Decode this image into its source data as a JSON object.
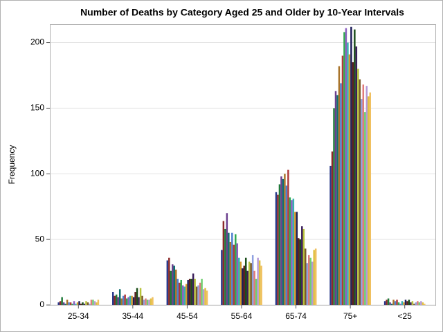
{
  "chart_data": {
    "type": "grouped_bar",
    "title": "Number of Deaths by Category Aged 25 and Older by 10-Year Intervals",
    "y_label": "Frequency",
    "categories": [
      "25-34",
      "35-44",
      "45-54",
      "55-64",
      "65-74",
      "75+",
      "<25"
    ],
    "ylim": [
      0,
      214
    ],
    "yticks": [
      0,
      50,
      100,
      150,
      200
    ],
    "grid": true,
    "series": [
      {
        "color": "#2a3a8c",
        "values": [
          2,
          10,
          34,
          42,
          86,
          106,
          3
        ]
      },
      {
        "color": "#8b2a2a",
        "values": [
          3,
          7,
          36,
          64,
          84,
          117,
          4
        ]
      },
      {
        "color": "#1f7a3a",
        "values": [
          6,
          8,
          26,
          58,
          92,
          150,
          5
        ]
      },
      {
        "color": "#6b3f8e",
        "values": [
          2,
          6,
          31,
          70,
          98,
          163,
          2
        ]
      },
      {
        "color": "#0f6e6e",
        "values": [
          1,
          12,
          30,
          55,
          96,
          160,
          1
        ]
      },
      {
        "color": "#a8742a",
        "values": [
          4,
          5,
          27,
          48,
          100,
          182,
          4
        ]
      },
      {
        "color": "#4f7fcf",
        "values": [
          2,
          7,
          20,
          55,
          91,
          169,
          3
        ]
      },
      {
        "color": "#b03a3a",
        "values": [
          2,
          8,
          17,
          46,
          103,
          190,
          4
        ]
      },
      {
        "color": "#2fa84f",
        "values": [
          1,
          5,
          19,
          54,
          82,
          208,
          2
        ]
      },
      {
        "color": "#8c5fc2",
        "values": [
          3,
          6,
          15,
          47,
          80,
          211,
          1
        ]
      },
      {
        "color": "#38b0b0",
        "values": [
          1,
          7,
          14,
          36,
          81,
          200,
          3
        ]
      },
      {
        "color": "#d49a2a",
        "values": [
          2,
          7,
          16,
          33,
          71,
          191,
          2
        ]
      },
      {
        "color": "#1e1e5a",
        "values": [
          3,
          6,
          19,
          28,
          71,
          212,
          4
        ]
      },
      {
        "color": "#5a1e1e",
        "values": [
          1,
          10,
          20,
          30,
          51,
          185,
          3
        ]
      },
      {
        "color": "#1a4d1a",
        "values": [
          2,
          13,
          20,
          36,
          50,
          210,
          4
        ]
      },
      {
        "color": "#3a1e5a",
        "values": [
          1,
          6,
          24,
          26,
          60,
          197,
          2
        ]
      },
      {
        "color": "#b7c23a",
        "values": [
          3,
          13,
          20,
          33,
          58,
          180,
          3
        ]
      },
      {
        "color": "#7a5a2a",
        "values": [
          2,
          7,
          14,
          32,
          43,
          172,
          1
        ]
      },
      {
        "color": "#8fa0e0",
        "values": [
          1,
          4,
          15,
          38,
          32,
          157,
          2
        ]
      },
      {
        "color": "#e07a7a",
        "values": [
          4,
          5,
          17,
          26,
          38,
          168,
          3
        ]
      },
      {
        "color": "#6fcf6f",
        "values": [
          4,
          4,
          20,
          20,
          36,
          147,
          2
        ]
      },
      {
        "color": "#b49ad8",
        "values": [
          3,
          4,
          12,
          36,
          33,
          167,
          3
        ]
      },
      {
        "color": "#e0c040",
        "values": [
          2,
          5,
          13,
          34,
          42,
          159,
          2
        ]
      },
      {
        "color": "#f0c060",
        "values": [
          4,
          6,
          11,
          30,
          43,
          162,
          1
        ]
      }
    ]
  }
}
